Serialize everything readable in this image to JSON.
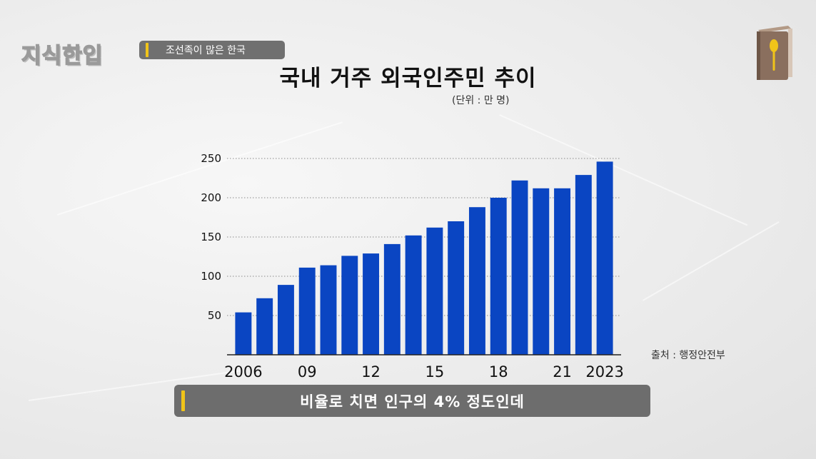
{
  "header": {
    "logo_text": "지식한입",
    "topic": "조선족이 많은 한국"
  },
  "icons": {
    "logo": "book-spoon-icon"
  },
  "colors": {
    "bar": "#0a45c2",
    "accent": "#f0c419",
    "pill": "#707070"
  },
  "caption": {
    "text": "비율로 치면 인구의 4% 정도인데"
  },
  "source": {
    "text": "출처 : 행정안전부"
  },
  "chart_data": {
    "type": "bar",
    "title": "국내 거주 외국인주민 추이",
    "unit": "(단위 : 만 명)",
    "xlabel": "",
    "ylabel": "",
    "ylim": [
      0,
      250
    ],
    "yticks": [
      50,
      100,
      150,
      200,
      250
    ],
    "categories": [
      "2006",
      "2007",
      "2008",
      "2009",
      "2010",
      "2011",
      "2012",
      "2013",
      "2014",
      "2015",
      "2016",
      "2017",
      "2018",
      "2019",
      "2020",
      "2021",
      "2022",
      "2023"
    ],
    "x_tick_labels": [
      "2006",
      "",
      "",
      "09",
      "",
      "",
      "12",
      "",
      "",
      "15",
      "",
      "",
      "18",
      "",
      "",
      "21",
      "",
      "2023"
    ],
    "values": [
      54,
      72,
      89,
      111,
      114,
      126,
      129,
      141,
      152,
      162,
      170,
      188,
      200,
      222,
      212,
      212,
      229,
      246
    ],
    "grid": "horizontal dotted",
    "legend": "none"
  }
}
